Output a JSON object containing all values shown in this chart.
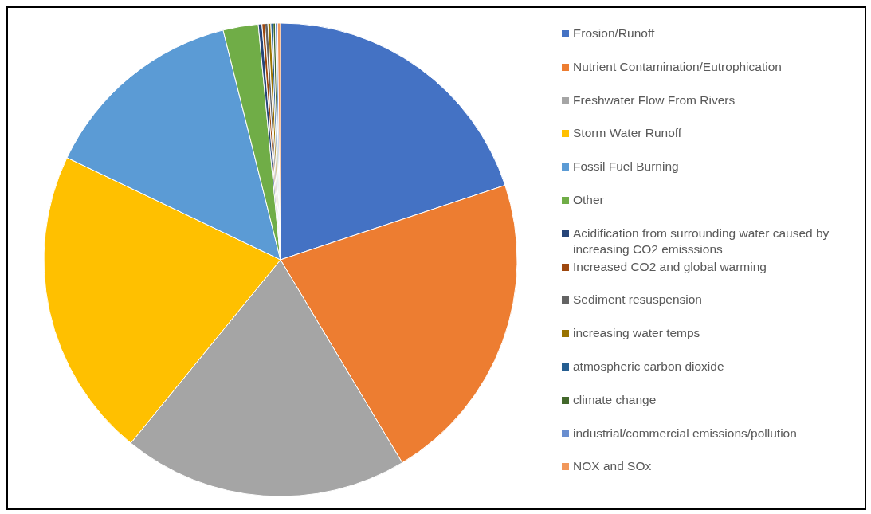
{
  "chart_data": {
    "type": "pie",
    "legend": "right",
    "categories": [
      "Erosion/Runoff",
      "Nutrient Contamination/Eutrophication",
      "Freshwater Flow From Rivers",
      "Storm Water Runoff",
      "Fossil Fuel Burning",
      "Other",
      "Acidification from surrounding water caused by increasing CO2 emisssions",
      "Increased CO2 and global warming",
      "Sediment resuspension",
      "increasing water temps",
      "atmospheric carbon dioxide",
      "climate change",
      "industrial/commercial emissions/pollution",
      "NOX and SOx"
    ],
    "values": [
      19.9,
      21.5,
      19.5,
      21.2,
      14.0,
      2.4,
      0.25,
      0.2,
      0.2,
      0.2,
      0.15,
      0.15,
      0.15,
      0.2
    ],
    "colors": [
      "#4472c4",
      "#ed7d31",
      "#a5a5a5",
      "#ffc000",
      "#5b9bd5",
      "#70ad47",
      "#264478",
      "#9e480e",
      "#636363",
      "#997300",
      "#255e91",
      "#43682b",
      "#698ed0",
      "#f1975a"
    ]
  }
}
